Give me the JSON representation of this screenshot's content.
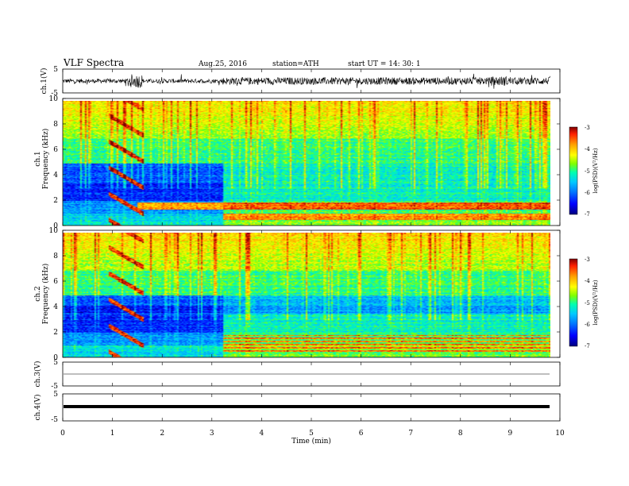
{
  "header": {
    "title": "VLF  Spectra",
    "date": "Aug.25, 2016",
    "station": "station=ATH",
    "start": "start  UT  =    14: 30: 1"
  },
  "colors": {
    "scale": [
      "#000080",
      "#0000ff",
      "#0070ff",
      "#00c8ff",
      "#00ffb0",
      "#80ff00",
      "#ffff00",
      "#ffa000",
      "#ff2000",
      "#800000"
    ],
    "grid": "#000000",
    "trace": "#000000"
  },
  "chart_data": [
    {
      "type": "line",
      "panel": "ch1-waveform",
      "ylabel": "ch.1(V)",
      "ylim": [
        -5,
        5
      ],
      "yticks": [
        "5",
        "-5"
      ],
      "xlim": [
        0,
        10
      ],
      "duration_min": 9.8,
      "note_values": "noise trace, larger bursts near 1.4 min and after 3.2 min"
    },
    {
      "type": "heatmap",
      "panel": "ch1-spectrogram",
      "ylabel": "ch.1\nFrequency  (kHz)",
      "ylim": [
        0,
        10
      ],
      "yticks": [
        "0",
        "2",
        "4",
        "6",
        "8",
        "10"
      ],
      "xlim": [
        0,
        10
      ],
      "duration_min": 9.8,
      "colorbar": {
        "label": "log(PSD)(V²/Hz)",
        "range": [
          -7,
          -3
        ],
        "ticks": [
          "-3",
          "-4",
          "-5",
          "-6",
          "-7"
        ]
      }
    },
    {
      "type": "heatmap",
      "panel": "ch2-spectrogram",
      "ylabel": "ch.2\nFrequency  (kHz)",
      "ylim": [
        0,
        10
      ],
      "yticks": [
        "0",
        "2",
        "4",
        "6",
        "8",
        "10"
      ],
      "xlim": [
        0,
        10
      ],
      "duration_min": 9.8,
      "colorbar": {
        "label": "log(PSD)(V²/Hz)",
        "range": [
          -7,
          -3
        ],
        "ticks": [
          "-3",
          "-4",
          "-5",
          "-6",
          "-7"
        ]
      }
    },
    {
      "type": "line",
      "panel": "ch3-waveform",
      "ylabel": "ch.3(V)",
      "ylim": [
        -5,
        5
      ],
      "yticks": [
        "5",
        "-5"
      ],
      "xlim": [
        0,
        10
      ],
      "values": "flat near 0 V"
    },
    {
      "type": "line",
      "panel": "ch4-waveform",
      "ylabel": "ch.4(V)",
      "ylim": [
        -5,
        5
      ],
      "yticks": [
        "5",
        "-5"
      ],
      "xlim": [
        0,
        10
      ],
      "values": "flat near 0 V (thick trace)"
    }
  ],
  "xaxis": {
    "label": "Time  (min)",
    "ticks": [
      "0",
      "1",
      "2",
      "3",
      "4",
      "5",
      "6",
      "7",
      "8",
      "9",
      "10"
    ]
  }
}
